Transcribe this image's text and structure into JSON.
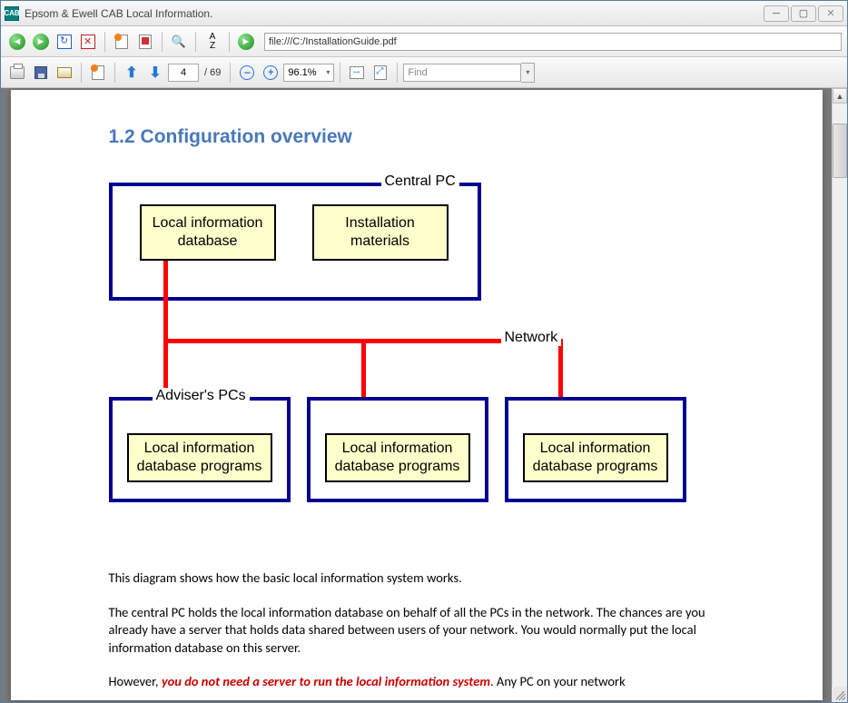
{
  "window": {
    "title": "Epsom & Ewell CAB Local Information.",
    "app_icon_text": "CAB"
  },
  "toolbar1": {
    "url_value": "file:///C:/InstallationGuide.pdf"
  },
  "toolbar2": {
    "page_current": "4",
    "page_total": "/ 69",
    "zoom": "96.1%",
    "find_placeholder": "Find"
  },
  "document": {
    "heading": "1.2  Configuration overview",
    "diagram": {
      "central_label": "Central PC",
      "network_label": "Network",
      "adviser_label": "Adviser's PCs",
      "box_local_info_db": "Local information\ndatabase",
      "box_install_materials": "Installation\nmaterials",
      "box_programs": "Local information\ndatabase programs",
      "colors": {
        "outer_border": "#000090",
        "inner_fill": "#FFFFCC",
        "inner_border": "#000000",
        "connector": "#ff0000"
      }
    },
    "para1": "This diagram shows how the basic local information system works.",
    "para2": "The central PC holds the local information database on behalf of all the PCs in the network.  The chances are you already have a server that holds data shared between users of your network.  You would normally put the local information database on this server.",
    "para3_pre": "However, ",
    "para3_emph": "you do not need a server to run the local information system",
    "para3_post": ".  Any PC on your network"
  }
}
